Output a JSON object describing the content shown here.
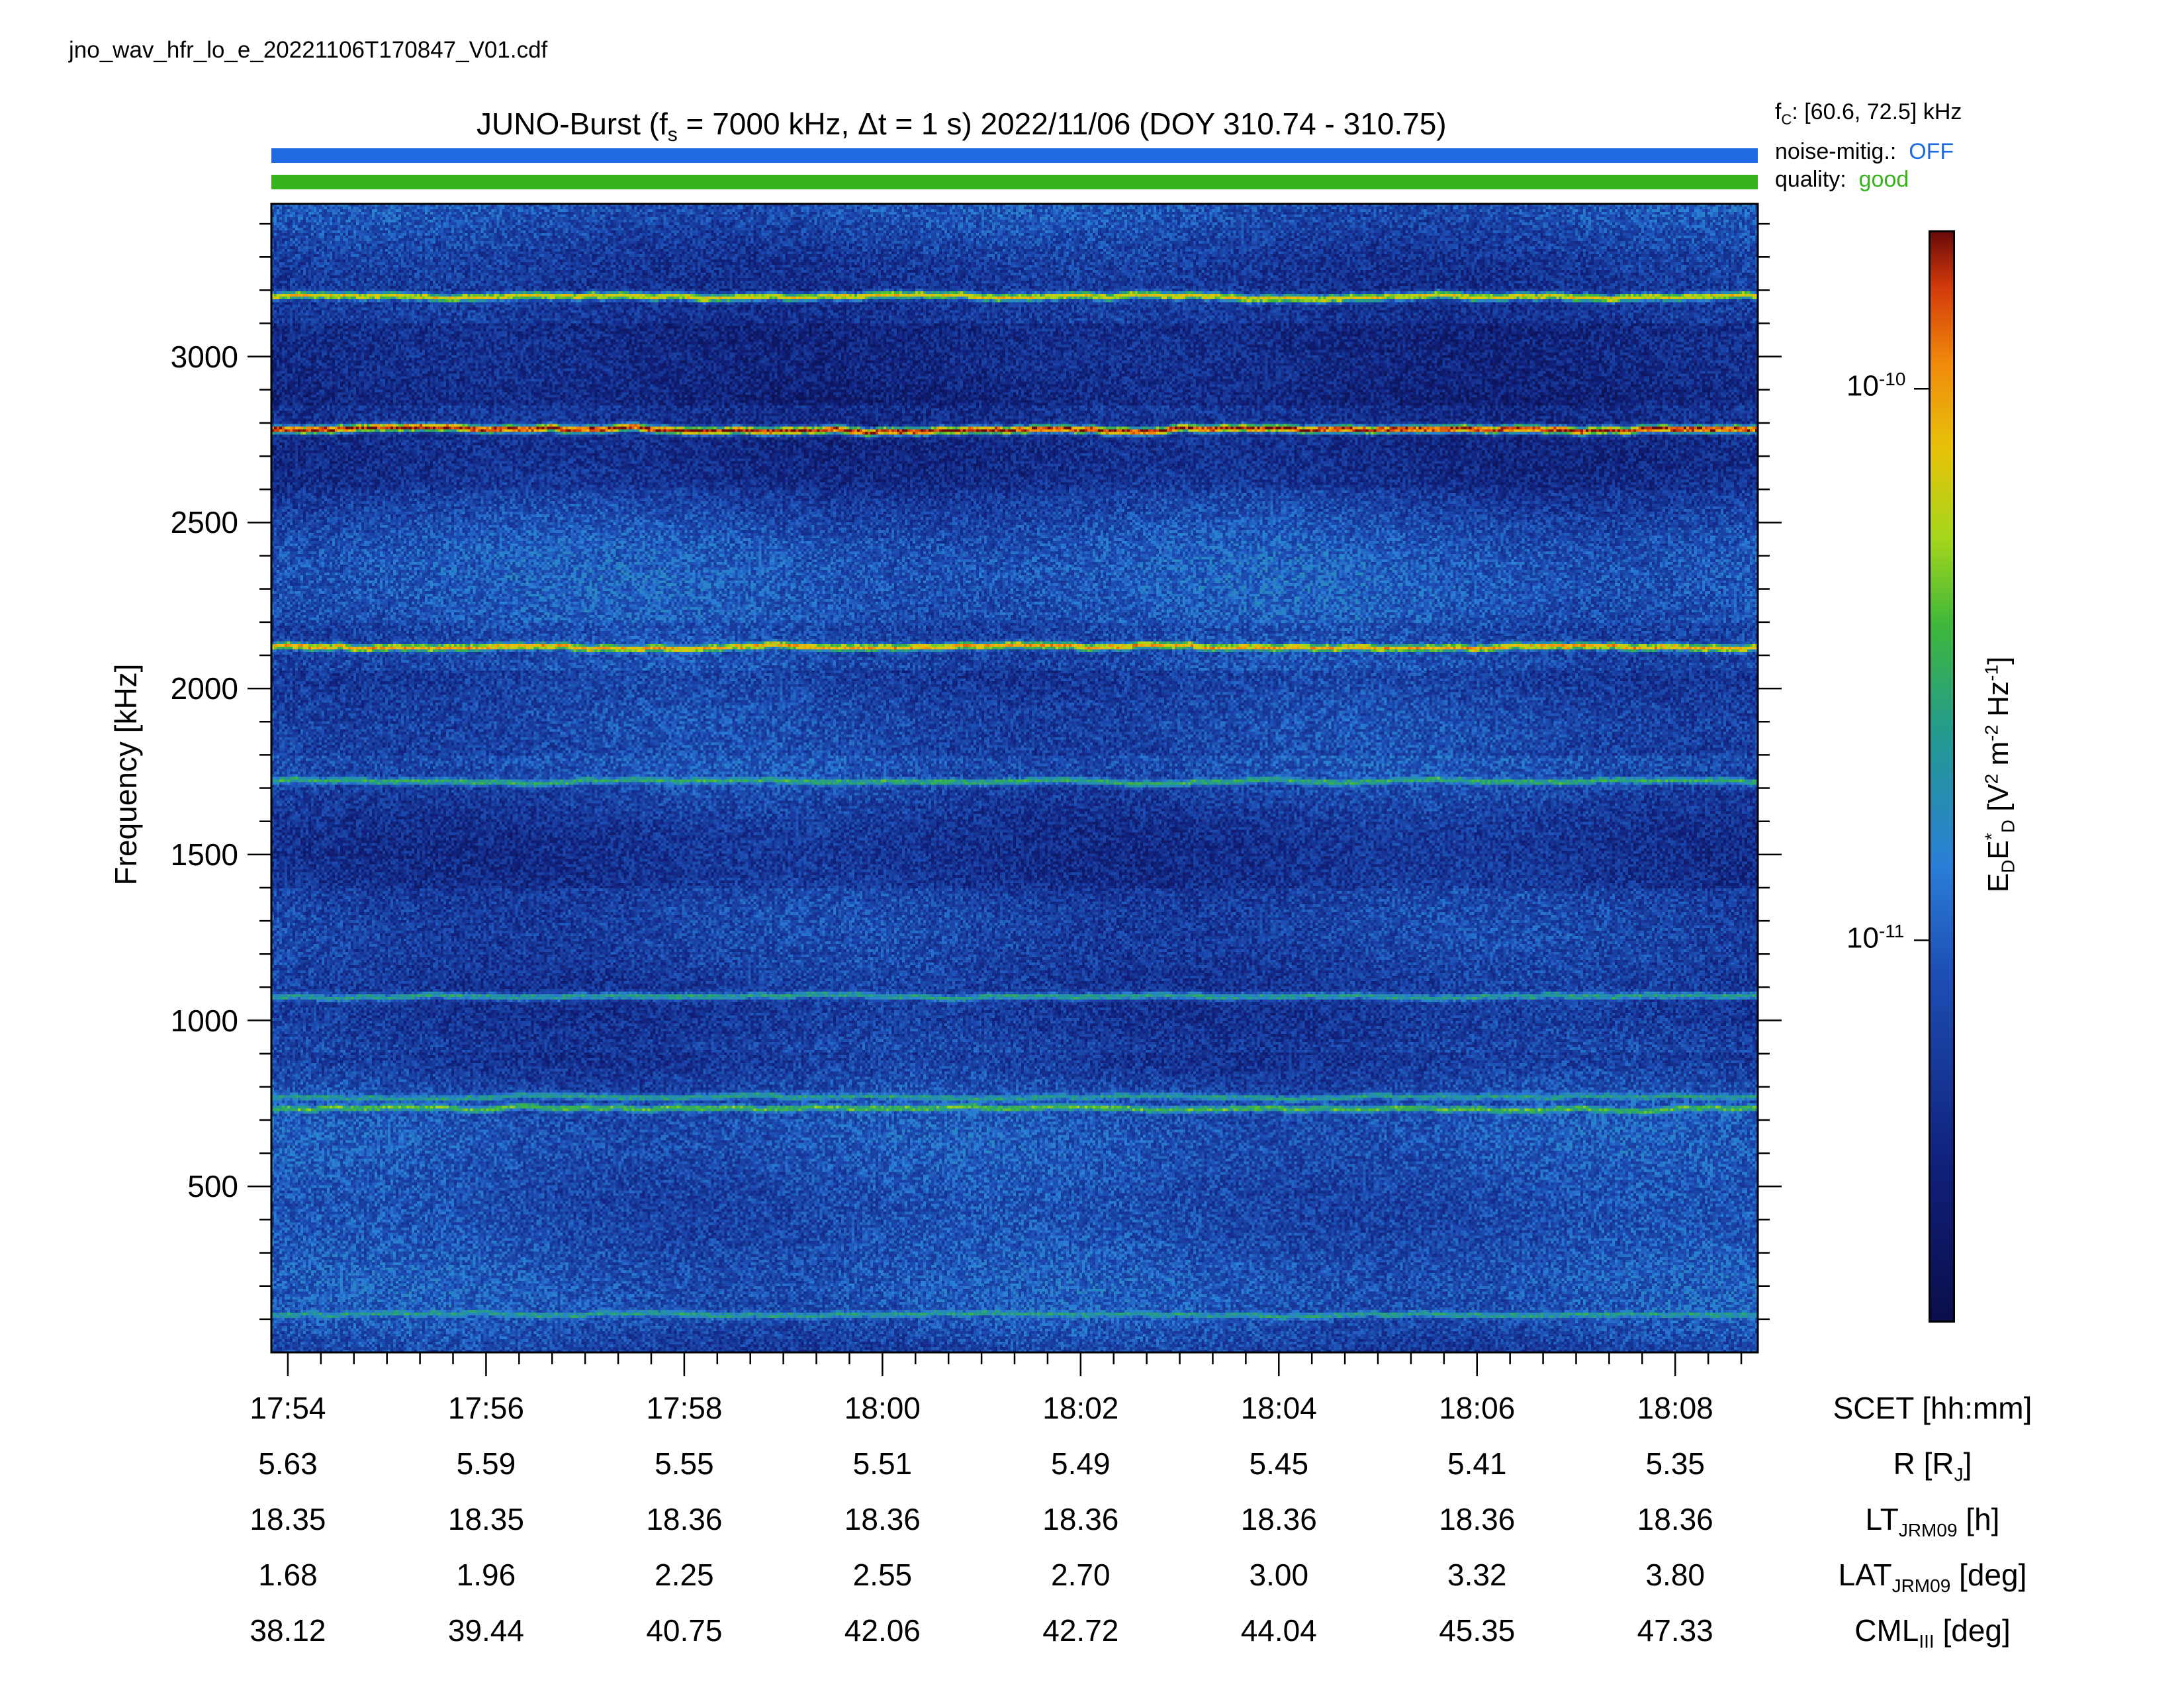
{
  "filename": "jno_wav_hfr_lo_e_20221106T170847_V01.cdf",
  "header": {
    "title_prefix": "JUNO-Burst (f",
    "title_sub": "s",
    "title_suffix": " = 7000 kHz, Δt = 1 s)  2022/11/06 (DOY 310.74 - 310.75)",
    "fc_prefix": "f",
    "fc_sub": "C",
    "fc_value": ": [60.6, 72.5] kHz",
    "noise_label": "noise-mitig.:",
    "noise_value": "OFF",
    "quality_label": "quality:",
    "quality_value": "good",
    "colors": {
      "noise_bar": "#1f6ce0",
      "quality_bar": "#36b21a"
    }
  },
  "chart_data": {
    "type": "heatmap",
    "title": "JUNO-Burst (fs = 7000 kHz, Δt = 1 s)  2022/11/06 (DOY 310.74 - 310.75)",
    "ylabel": "Frequency [kHz]",
    "ylim": [
      0,
      3460
    ],
    "yticks": [
      500,
      1000,
      1500,
      2000,
      2500,
      3000
    ],
    "xlim": [
      "17:53:50",
      "18:08:50"
    ],
    "xticks": [
      "17:54",
      "17:56",
      "17:58",
      "18:00",
      "18:02",
      "18:04",
      "18:06",
      "18:08"
    ],
    "emission_bands_khz": [
      {
        "freq": 3180,
        "intensity": 0.7
      },
      {
        "freq": 2780,
        "intensity": 0.9
      },
      {
        "freq": 2125,
        "intensity": 0.75
      },
      {
        "freq": 1720,
        "intensity": 0.5
      },
      {
        "freq": 1070,
        "intensity": 0.45
      },
      {
        "freq": 770,
        "intensity": 0.45
      },
      {
        "freq": 735,
        "intensity": 0.55
      },
      {
        "freq": 115,
        "intensity": 0.45
      }
    ],
    "colorbar": {
      "label": "E_D E_D* [V^2 m^-2 Hz^-1]",
      "scale": "log",
      "ticks": [
        {
          "base": "10",
          "exp": "-10"
        },
        {
          "base": "10",
          "exp": "-11"
        }
      ]
    },
    "ephemeris": {
      "rows": [
        {
          "label": "SCET [hh:mm]",
          "values": [
            "17:54",
            "17:56",
            "17:58",
            "18:00",
            "18:02",
            "18:04",
            "18:06",
            "18:08"
          ]
        },
        {
          "label": "R [RJ]",
          "values": [
            "5.63",
            "5.59",
            "5.55",
            "5.51",
            "5.49",
            "5.45",
            "5.41",
            "5.35"
          ]
        },
        {
          "label": "LT JRM09 [h]",
          "values": [
            "18.35",
            "18.35",
            "18.36",
            "18.36",
            "18.36",
            "18.36",
            "18.36",
            "18.36"
          ]
        },
        {
          "label": "LAT JRM09 [deg]",
          "values": [
            "1.68",
            "1.96",
            "2.25",
            "2.55",
            "2.70",
            "3.00",
            "3.32",
            "3.80"
          ]
        },
        {
          "label": "CML III [deg]",
          "values": [
            "38.12",
            "39.44",
            "40.75",
            "42.06",
            "42.72",
            "44.04",
            "45.35",
            "47.33"
          ]
        }
      ]
    }
  },
  "labels": {
    "ylabel": "Frequency [kHz]",
    "cb_E": "E",
    "cb_sub": "D",
    "cb_E2": "E",
    "cb_star": "*",
    "cb_sub2": "D",
    "cb_units_a": " [V",
    "cb_sup2": "2",
    "cb_units_b": " m",
    "cb_supm2": "-2",
    "cb_units_c": " Hz",
    "cb_supm1": "-1",
    "cb_units_d": "]",
    "row_scet": "SCET [hh:mm]",
    "row_r_pre": "R [R",
    "row_r_sub": "J",
    "row_r_post": "]",
    "row_lt_pre": "LT",
    "row_lt_sub": "JRM09",
    "row_lt_post": " [h]",
    "row_lat_pre": "LAT",
    "row_lat_sub": "JRM09",
    "row_lat_post": " [deg]",
    "row_cml_pre": "CML",
    "row_cml_sub": "III",
    "row_cml_post": " [deg]"
  }
}
